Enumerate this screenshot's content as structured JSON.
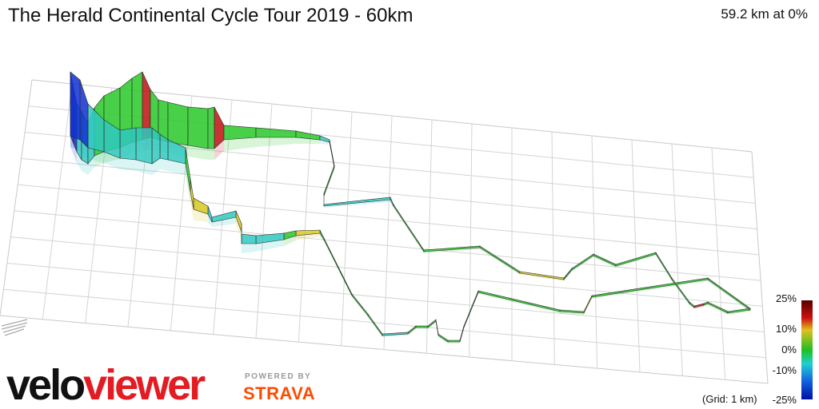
{
  "header": {
    "title": "The Herald Continental Cycle Tour 2019 - 60km",
    "readout": "59.2 km at 0%"
  },
  "legend": {
    "ticks": [
      "25%",
      "10%",
      "0%",
      "-10%",
      "-25%"
    ],
    "grid_note": "(Grid: 1 km)",
    "colors": {
      "max": "#550000",
      "steep_up": "#d01010",
      "mild_up": "#e0c020",
      "flat": "#20c020",
      "mild_down": "#20d0d0",
      "steep_down": "#1060e0",
      "min": "#0010a0"
    }
  },
  "branding": {
    "veloviewer_logo": "veloviewer",
    "powered_by": "POWERED BY",
    "strava_logo": "STRAVA"
  }
}
